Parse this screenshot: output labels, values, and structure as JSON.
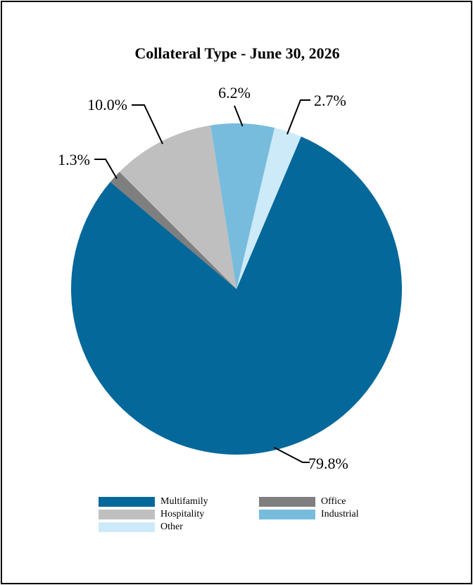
{
  "chart_data": {
    "type": "pie",
    "title": "Collateral Type - June 30, 2026",
    "slices": [
      {
        "name": "Multifamily",
        "value": 79.8,
        "label": "79.8%",
        "color": "#05689a"
      },
      {
        "name": "Office",
        "value": 1.3,
        "label": "1.3%",
        "color": "#7f7f7f"
      },
      {
        "name": "Hospitality",
        "value": 10.0,
        "label": "10.0%",
        "color": "#bfbfbf"
      },
      {
        "name": "Industrial",
        "value": 6.2,
        "label": "6.2%",
        "color": "#77bcdc"
      },
      {
        "name": "Other",
        "value": 2.7,
        "label": "2.7%",
        "color": "#cdeaf8"
      }
    ],
    "legend_order": [
      "Multifamily",
      "Office",
      "Hospitality",
      "Industrial",
      "Other"
    ],
    "legend_position": "bottom"
  }
}
